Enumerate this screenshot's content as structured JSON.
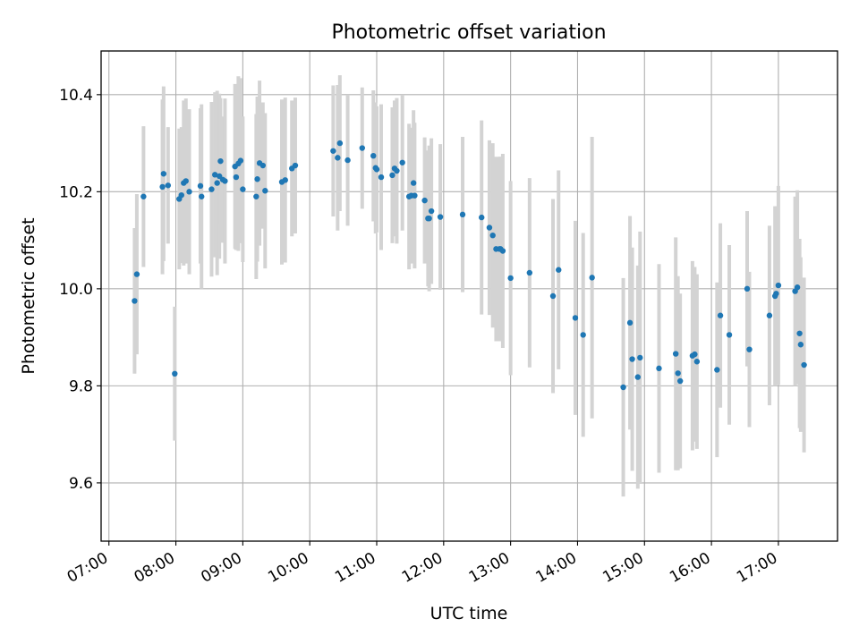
{
  "chart_data": {
    "type": "scatter",
    "title": "Photometric offset variation",
    "xlabel": "UTC time",
    "ylabel": "Photometric offset",
    "x_ticks": [
      "07:00",
      "08:00",
      "09:00",
      "10:00",
      "11:00",
      "12:00",
      "13:00",
      "14:00",
      "15:00",
      "16:00",
      "17:00"
    ],
    "y_ticks": [
      "9.6",
      "9.8",
      "10.0",
      "10.2",
      "10.4"
    ],
    "x_range": [
      "06:53",
      "17:53"
    ],
    "ylim": [
      9.48,
      10.49
    ],
    "grid": true,
    "colors": {
      "marker": "#1f77b4",
      "errorbar": "#d3d3d3",
      "grid": "#b0b0b0"
    },
    "series": [
      {
        "points": [
          {
            "x": "07:23",
            "y": 9.975,
            "err": 0.15
          },
          {
            "x": "07:25",
            "y": 10.03,
            "err": 0.165
          },
          {
            "x": "07:31",
            "y": 10.19,
            "err": 0.145
          },
          {
            "x": "07:48",
            "y": 10.21,
            "err": 0.18
          },
          {
            "x": "07:49",
            "y": 10.237,
            "err": 0.18
          },
          {
            "x": "07:53",
            "y": 10.213,
            "err": 0.12
          },
          {
            "x": "07:59",
            "y": 9.825,
            "err": 0.138
          },
          {
            "x": "08:03",
            "y": 10.185,
            "err": 0.145
          },
          {
            "x": "08:05",
            "y": 10.193,
            "err": 0.14
          },
          {
            "x": "08:07",
            "y": 10.218,
            "err": 0.17
          },
          {
            "x": "08:09",
            "y": 10.222,
            "err": 0.17
          },
          {
            "x": "08:12",
            "y": 10.2,
            "err": 0.17
          },
          {
            "x": "08:22",
            "y": 10.212,
            "err": 0.16
          },
          {
            "x": "08:23",
            "y": 10.19,
            "err": 0.19
          },
          {
            "x": "08:32",
            "y": 10.205,
            "err": 0.18
          },
          {
            "x": "08:35",
            "y": 10.235,
            "err": 0.17
          },
          {
            "x": "08:37",
            "y": 10.218,
            "err": 0.19
          },
          {
            "x": "08:39",
            "y": 10.232,
            "err": 0.17
          },
          {
            "x": "08:40",
            "y": 10.263,
            "err": 0.13
          },
          {
            "x": "08:42",
            "y": 10.225,
            "err": 0.13
          },
          {
            "x": "08:44",
            "y": 10.222,
            "err": 0.17
          },
          {
            "x": "08:53",
            "y": 10.252,
            "err": 0.17
          },
          {
            "x": "08:54",
            "y": 10.23,
            "err": 0.15
          },
          {
            "x": "08:56",
            "y": 10.258,
            "err": 0.18
          },
          {
            "x": "08:58",
            "y": 10.264,
            "err": 0.17
          },
          {
            "x": "09:00",
            "y": 10.205,
            "err": 0.15
          },
          {
            "x": "09:12",
            "y": 10.19,
            "err": 0.17
          },
          {
            "x": "09:13",
            "y": 10.226,
            "err": 0.17
          },
          {
            "x": "09:15",
            "y": 10.259,
            "err": 0.17
          },
          {
            "x": "09:18",
            "y": 10.254,
            "err": 0.13
          },
          {
            "x": "09:20",
            "y": 10.202,
            "err": 0.16
          },
          {
            "x": "09:35",
            "y": 10.22,
            "err": 0.17
          },
          {
            "x": "09:38",
            "y": 10.224,
            "err": 0.17
          },
          {
            "x": "09:44",
            "y": 10.248,
            "err": 0.14
          },
          {
            "x": "09:47",
            "y": 10.254,
            "err": 0.14
          },
          {
            "x": "10:21",
            "y": 10.284,
            "err": 0.135
          },
          {
            "x": "10:25",
            "y": 10.27,
            "err": 0.15
          },
          {
            "x": "10:27",
            "y": 10.3,
            "err": 0.14
          },
          {
            "x": "10:34",
            "y": 10.265,
            "err": 0.135
          },
          {
            "x": "10:47",
            "y": 10.29,
            "err": 0.125
          },
          {
            "x": "10:57",
            "y": 10.274,
            "err": 0.135
          },
          {
            "x": "10:59",
            "y": 10.249,
            "err": 0.135
          },
          {
            "x": "11:00",
            "y": 10.246,
            "err": 0.13
          },
          {
            "x": "11:04",
            "y": 10.23,
            "err": 0.15
          },
          {
            "x": "11:14",
            "y": 10.234,
            "err": 0.14
          },
          {
            "x": "11:16",
            "y": 10.248,
            "err": 0.14
          },
          {
            "x": "11:18",
            "y": 10.243,
            "err": 0.15
          },
          {
            "x": "11:23",
            "y": 10.26,
            "err": 0.14
          },
          {
            "x": "11:29",
            "y": 10.19,
            "err": 0.15
          },
          {
            "x": "11:31",
            "y": 10.192,
            "err": 0.14
          },
          {
            "x": "11:33",
            "y": 10.218,
            "err": 0.15
          },
          {
            "x": "11:34",
            "y": 10.192,
            "err": 0.15
          },
          {
            "x": "11:43",
            "y": 10.182,
            "err": 0.13
          },
          {
            "x": "11:46",
            "y": 10.145,
            "err": 0.14
          },
          {
            "x": "11:47",
            "y": 10.145,
            "err": 0.15
          },
          {
            "x": "11:49",
            "y": 10.16,
            "err": 0.15
          },
          {
            "x": "11:57",
            "y": 10.148,
            "err": 0.15
          },
          {
            "x": "12:17",
            "y": 10.153,
            "err": 0.16
          },
          {
            "x": "12:34",
            "y": 10.147,
            "err": 0.2
          },
          {
            "x": "12:41",
            "y": 10.126,
            "err": 0.18
          },
          {
            "x": "12:44",
            "y": 10.11,
            "err": 0.19
          },
          {
            "x": "12:47",
            "y": 10.082,
            "err": 0.19
          },
          {
            "x": "12:50",
            "y": 10.082,
            "err": 0.19
          },
          {
            "x": "12:51",
            "y": 10.082,
            "err": 0.19
          },
          {
            "x": "12:53",
            "y": 10.078,
            "err": 0.2
          },
          {
            "x": "13:00",
            "y": 10.022,
            "err": 0.2
          },
          {
            "x": "13:17",
            "y": 10.033,
            "err": 0.195
          },
          {
            "x": "13:38",
            "y": 9.985,
            "err": 0.2
          },
          {
            "x": "13:43",
            "y": 10.039,
            "err": 0.205
          },
          {
            "x": "13:58",
            "y": 9.94,
            "err": 0.2
          },
          {
            "x": "14:05",
            "y": 9.905,
            "err": 0.21
          },
          {
            "x": "14:13",
            "y": 10.023,
            "err": 0.29
          },
          {
            "x": "14:41",
            "y": 9.797,
            "err": 0.225
          },
          {
            "x": "14:47",
            "y": 9.93,
            "err": 0.22
          },
          {
            "x": "14:49",
            "y": 9.855,
            "err": 0.23
          },
          {
            "x": "14:54",
            "y": 9.818,
            "err": 0.23
          },
          {
            "x": "14:56",
            "y": 9.858,
            "err": 0.26
          },
          {
            "x": "15:13",
            "y": 9.836,
            "err": 0.215
          },
          {
            "x": "15:28",
            "y": 9.866,
            "err": 0.24
          },
          {
            "x": "15:30",
            "y": 9.826,
            "err": 0.2
          },
          {
            "x": "15:32",
            "y": 9.81,
            "err": 0.18
          },
          {
            "x": "15:43",
            "y": 9.862,
            "err": 0.195
          },
          {
            "x": "15:45",
            "y": 9.865,
            "err": 0.18
          },
          {
            "x": "15:47",
            "y": 9.85,
            "err": 0.18
          },
          {
            "x": "16:05",
            "y": 9.833,
            "err": 0.18
          },
          {
            "x": "16:08",
            "y": 9.945,
            "err": 0.19
          },
          {
            "x": "16:16",
            "y": 9.905,
            "err": 0.185
          },
          {
            "x": "16:32",
            "y": 10.0,
            "err": 0.16
          },
          {
            "x": "16:34",
            "y": 9.875,
            "err": 0.16
          },
          {
            "x": "16:52",
            "y": 9.945,
            "err": 0.185
          },
          {
            "x": "16:57",
            "y": 9.985,
            "err": 0.185
          },
          {
            "x": "16:58",
            "y": 9.99,
            "err": 0.18
          },
          {
            "x": "17:00",
            "y": 10.007,
            "err": 0.205
          },
          {
            "x": "17:15",
            "y": 9.995,
            "err": 0.195
          },
          {
            "x": "17:17",
            "y": 10.003,
            "err": 0.2
          },
          {
            "x": "17:19",
            "y": 9.908,
            "err": 0.195
          },
          {
            "x": "17:20",
            "y": 9.885,
            "err": 0.18
          },
          {
            "x": "17:23",
            "y": 9.843,
            "err": 0.18
          }
        ]
      }
    ]
  }
}
